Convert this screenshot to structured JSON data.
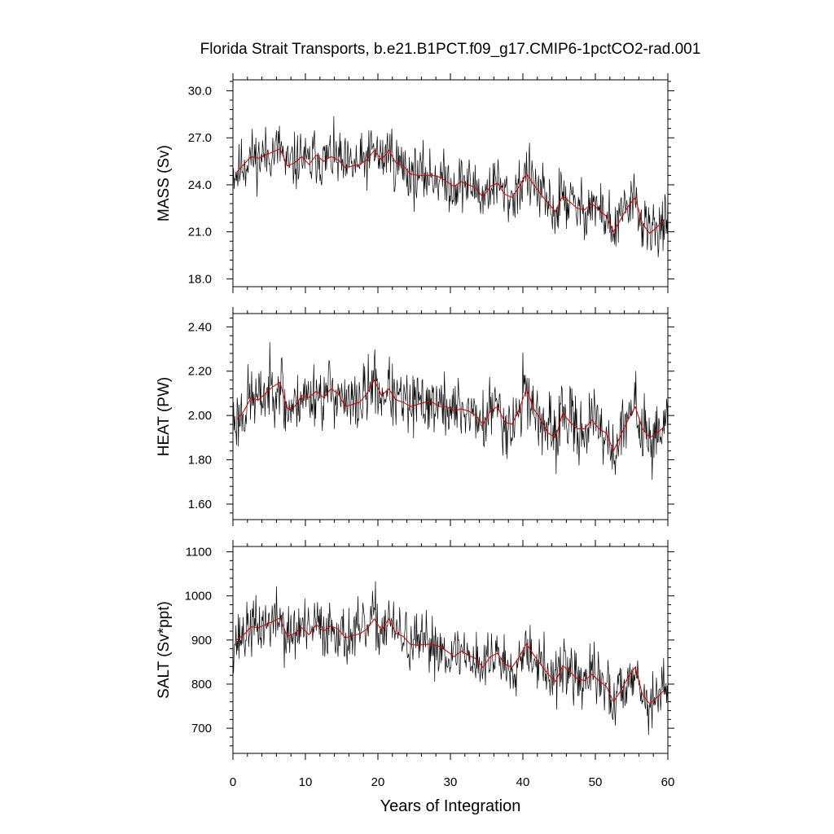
{
  "chart_data": {
    "type": "line",
    "title": "Florida Strait Transports, b.e21.B1PCT.f09_g17.CMIP6-1pctCO2-rad.001",
    "xlabel": "Years of Integration",
    "xlim": [
      0,
      60
    ],
    "x_ticks": [
      "0",
      "10",
      "20",
      "30",
      "40",
      "50",
      "60"
    ],
    "series_colors": {
      "monthly": "#000000",
      "annual": "#e00000"
    },
    "panels": [
      {
        "ylabel": "MASS (Sv)",
        "ylim": [
          17.5,
          30.7
        ],
        "y_tick_values": [
          18,
          21,
          24,
          27,
          30
        ],
        "y_ticks": [
          "18.0",
          "21.0",
          "24.0",
          "27.0",
          "30.0"
        ],
        "annual_years": [
          0.5,
          1.5,
          2.5,
          3.5,
          4.5,
          5.5,
          6.5,
          7.5,
          8.5,
          9.5,
          10.5,
          11.5,
          12.5,
          13.5,
          14.5,
          15.5,
          16.5,
          17.5,
          18.5,
          19.5,
          20.5,
          21.5,
          22.5,
          23.5,
          24.5,
          25.5,
          26.5,
          27.5,
          28.5,
          29.5,
          30.5,
          31.5,
          32.5,
          33.5,
          34.5,
          35.5,
          36.5,
          37.5,
          38.5,
          39.5,
          40.5,
          41.5,
          42.5,
          43.5,
          44.5,
          45.5,
          46.5,
          47.5,
          48.5,
          49.5,
          50.5,
          51.5,
          52.5,
          53.5,
          54.5,
          55.5,
          56.5,
          57.5,
          58.5,
          59.5
        ],
        "annual": [
          24.8,
          25.3,
          25.8,
          25.7,
          25.9,
          26.1,
          26.3,
          25.2,
          25.4,
          25.8,
          25.3,
          25.9,
          25.5,
          25.8,
          25.6,
          25.1,
          25.2,
          25.3,
          25.6,
          26.2,
          25.6,
          26.2,
          25.4,
          25.2,
          24.7,
          24.6,
          24.6,
          24.6,
          24.5,
          24.2,
          23.9,
          24.2,
          24.0,
          23.8,
          23.2,
          23.9,
          24.1,
          23.4,
          23.2,
          23.9,
          24.7,
          24.0,
          23.4,
          22.8,
          22.3,
          23.3,
          22.9,
          22.5,
          22.4,
          22.8,
          22.4,
          22.0,
          21.0,
          21.8,
          22.6,
          23.2,
          21.5,
          20.9,
          21.3,
          21.8
        ],
        "monthly_mean": [
          24.8,
          25.3,
          25.8,
          25.7,
          25.9,
          26.1,
          26.3,
          25.2,
          25.4,
          25.8,
          25.3,
          25.9,
          25.5,
          25.8,
          25.6,
          25.1,
          25.2,
          25.3,
          25.6,
          26.2,
          25.6,
          26.2,
          25.4,
          25.2,
          24.7,
          24.6,
          24.6,
          24.6,
          24.5,
          24.2,
          23.9,
          24.2,
          24.0,
          23.8,
          23.2,
          23.9,
          24.1,
          23.4,
          23.2,
          23.9,
          24.7,
          24.0,
          23.4,
          22.8,
          22.3,
          23.3,
          22.9,
          22.5,
          22.4,
          22.8,
          22.4,
          22.0,
          21.0,
          21.8,
          22.6,
          23.2,
          21.5,
          20.9,
          21.3,
          21.8
        ],
        "monthly_amplitude": 1.5,
        "monthly_seed": 11
      },
      {
        "ylabel": "HEAT (PW)",
        "ylim": [
          1.53,
          2.46
        ],
        "y_tick_values": [
          1.6,
          1.8,
          2.0,
          2.2,
          2.4
        ],
        "y_ticks": [
          "1.60",
          "1.80",
          "2.00",
          "2.20",
          "2.40"
        ],
        "annual_years": [
          0.5,
          1.5,
          2.5,
          3.5,
          4.5,
          5.5,
          6.5,
          7.5,
          8.5,
          9.5,
          10.5,
          11.5,
          12.5,
          13.5,
          14.5,
          15.5,
          16.5,
          17.5,
          18.5,
          19.5,
          20.5,
          21.5,
          22.5,
          23.5,
          24.5,
          25.5,
          26.5,
          27.5,
          28.5,
          29.5,
          30.5,
          31.5,
          32.5,
          33.5,
          34.5,
          35.5,
          36.5,
          37.5,
          38.5,
          39.5,
          40.5,
          41.5,
          42.5,
          43.5,
          44.5,
          45.5,
          46.5,
          47.5,
          48.5,
          49.5,
          50.5,
          51.5,
          52.5,
          53.5,
          54.5,
          55.5,
          56.5,
          57.5,
          58.5,
          59.5
        ],
        "annual": [
          1.98,
          2.02,
          2.08,
          2.07,
          2.1,
          2.13,
          2.15,
          2.03,
          2.04,
          2.09,
          2.08,
          2.11,
          2.08,
          2.12,
          2.1,
          2.04,
          2.05,
          2.06,
          2.1,
          2.16,
          2.09,
          2.12,
          2.07,
          2.06,
          2.04,
          2.05,
          2.06,
          2.06,
          2.04,
          2.04,
          2.02,
          2.03,
          2.02,
          2.0,
          1.96,
          2.02,
          2.04,
          1.97,
          1.96,
          2.03,
          2.12,
          2.03,
          1.98,
          1.92,
          1.9,
          2.01,
          1.97,
          1.94,
          1.94,
          1.98,
          1.94,
          1.92,
          1.84,
          1.91,
          1.98,
          2.04,
          1.94,
          1.9,
          1.92,
          1.95
        ],
        "monthly_mean": [
          1.98,
          2.02,
          2.08,
          2.07,
          2.1,
          2.13,
          2.15,
          2.03,
          2.04,
          2.09,
          2.08,
          2.11,
          2.08,
          2.12,
          2.1,
          2.04,
          2.05,
          2.06,
          2.1,
          2.16,
          2.09,
          2.12,
          2.07,
          2.06,
          2.04,
          2.05,
          2.06,
          2.06,
          2.04,
          2.04,
          2.02,
          2.03,
          2.02,
          2.0,
          1.96,
          2.02,
          2.04,
          1.97,
          1.96,
          2.03,
          2.12,
          2.03,
          1.98,
          1.92,
          1.9,
          2.01,
          1.97,
          1.94,
          1.94,
          1.98,
          1.94,
          1.92,
          1.84,
          1.91,
          1.98,
          2.04,
          1.94,
          1.9,
          1.92,
          1.95
        ],
        "monthly_amplitude": 0.12,
        "monthly_seed": 23
      },
      {
        "ylabel": "SALT (Sv*ppt)",
        "ylim": [
          643,
          1112
        ],
        "y_tick_values": [
          700,
          800,
          900,
          1000,
          1100
        ],
        "y_ticks": [
          "700",
          "800",
          "900",
          "1000",
          "1100"
        ],
        "annual_years": [
          0.5,
          1.5,
          2.5,
          3.5,
          4.5,
          5.5,
          6.5,
          7.5,
          8.5,
          9.5,
          10.5,
          11.5,
          12.5,
          13.5,
          14.5,
          15.5,
          16.5,
          17.5,
          18.5,
          19.5,
          20.5,
          21.5,
          22.5,
          23.5,
          24.5,
          25.5,
          26.5,
          27.5,
          28.5,
          29.5,
          30.5,
          31.5,
          32.5,
          33.5,
          34.5,
          35.5,
          36.5,
          37.5,
          38.5,
          39.5,
          40.5,
          41.5,
          42.5,
          43.5,
          44.5,
          45.5,
          46.5,
          47.5,
          48.5,
          49.5,
          50.5,
          51.5,
          52.5,
          53.5,
          54.5,
          55.5,
          56.5,
          57.5,
          58.5,
          59.5
        ],
        "annual": [
          900,
          912,
          930,
          928,
          935,
          942,
          950,
          908,
          915,
          928,
          912,
          935,
          920,
          932,
          925,
          905,
          910,
          914,
          925,
          948,
          922,
          948,
          915,
          908,
          890,
          888,
          890,
          890,
          885,
          875,
          862,
          875,
          865,
          858,
          838,
          862,
          870,
          845,
          838,
          862,
          892,
          866,
          844,
          822,
          806,
          842,
          828,
          812,
          808,
          822,
          808,
          795,
          760,
          785,
          815,
          838,
          776,
          755,
          770,
          786
        ],
        "monthly_mean": [
          900,
          912,
          930,
          928,
          935,
          942,
          950,
          908,
          915,
          928,
          912,
          935,
          920,
          932,
          925,
          905,
          910,
          914,
          925,
          948,
          922,
          948,
          915,
          908,
          890,
          888,
          890,
          890,
          885,
          875,
          862,
          875,
          865,
          858,
          838,
          862,
          870,
          845,
          838,
          862,
          892,
          866,
          844,
          822,
          806,
          842,
          828,
          812,
          808,
          822,
          808,
          795,
          760,
          785,
          815,
          838,
          776,
          755,
          770,
          786
        ],
        "monthly_amplitude": 55,
        "monthly_seed": 37
      }
    ]
  }
}
